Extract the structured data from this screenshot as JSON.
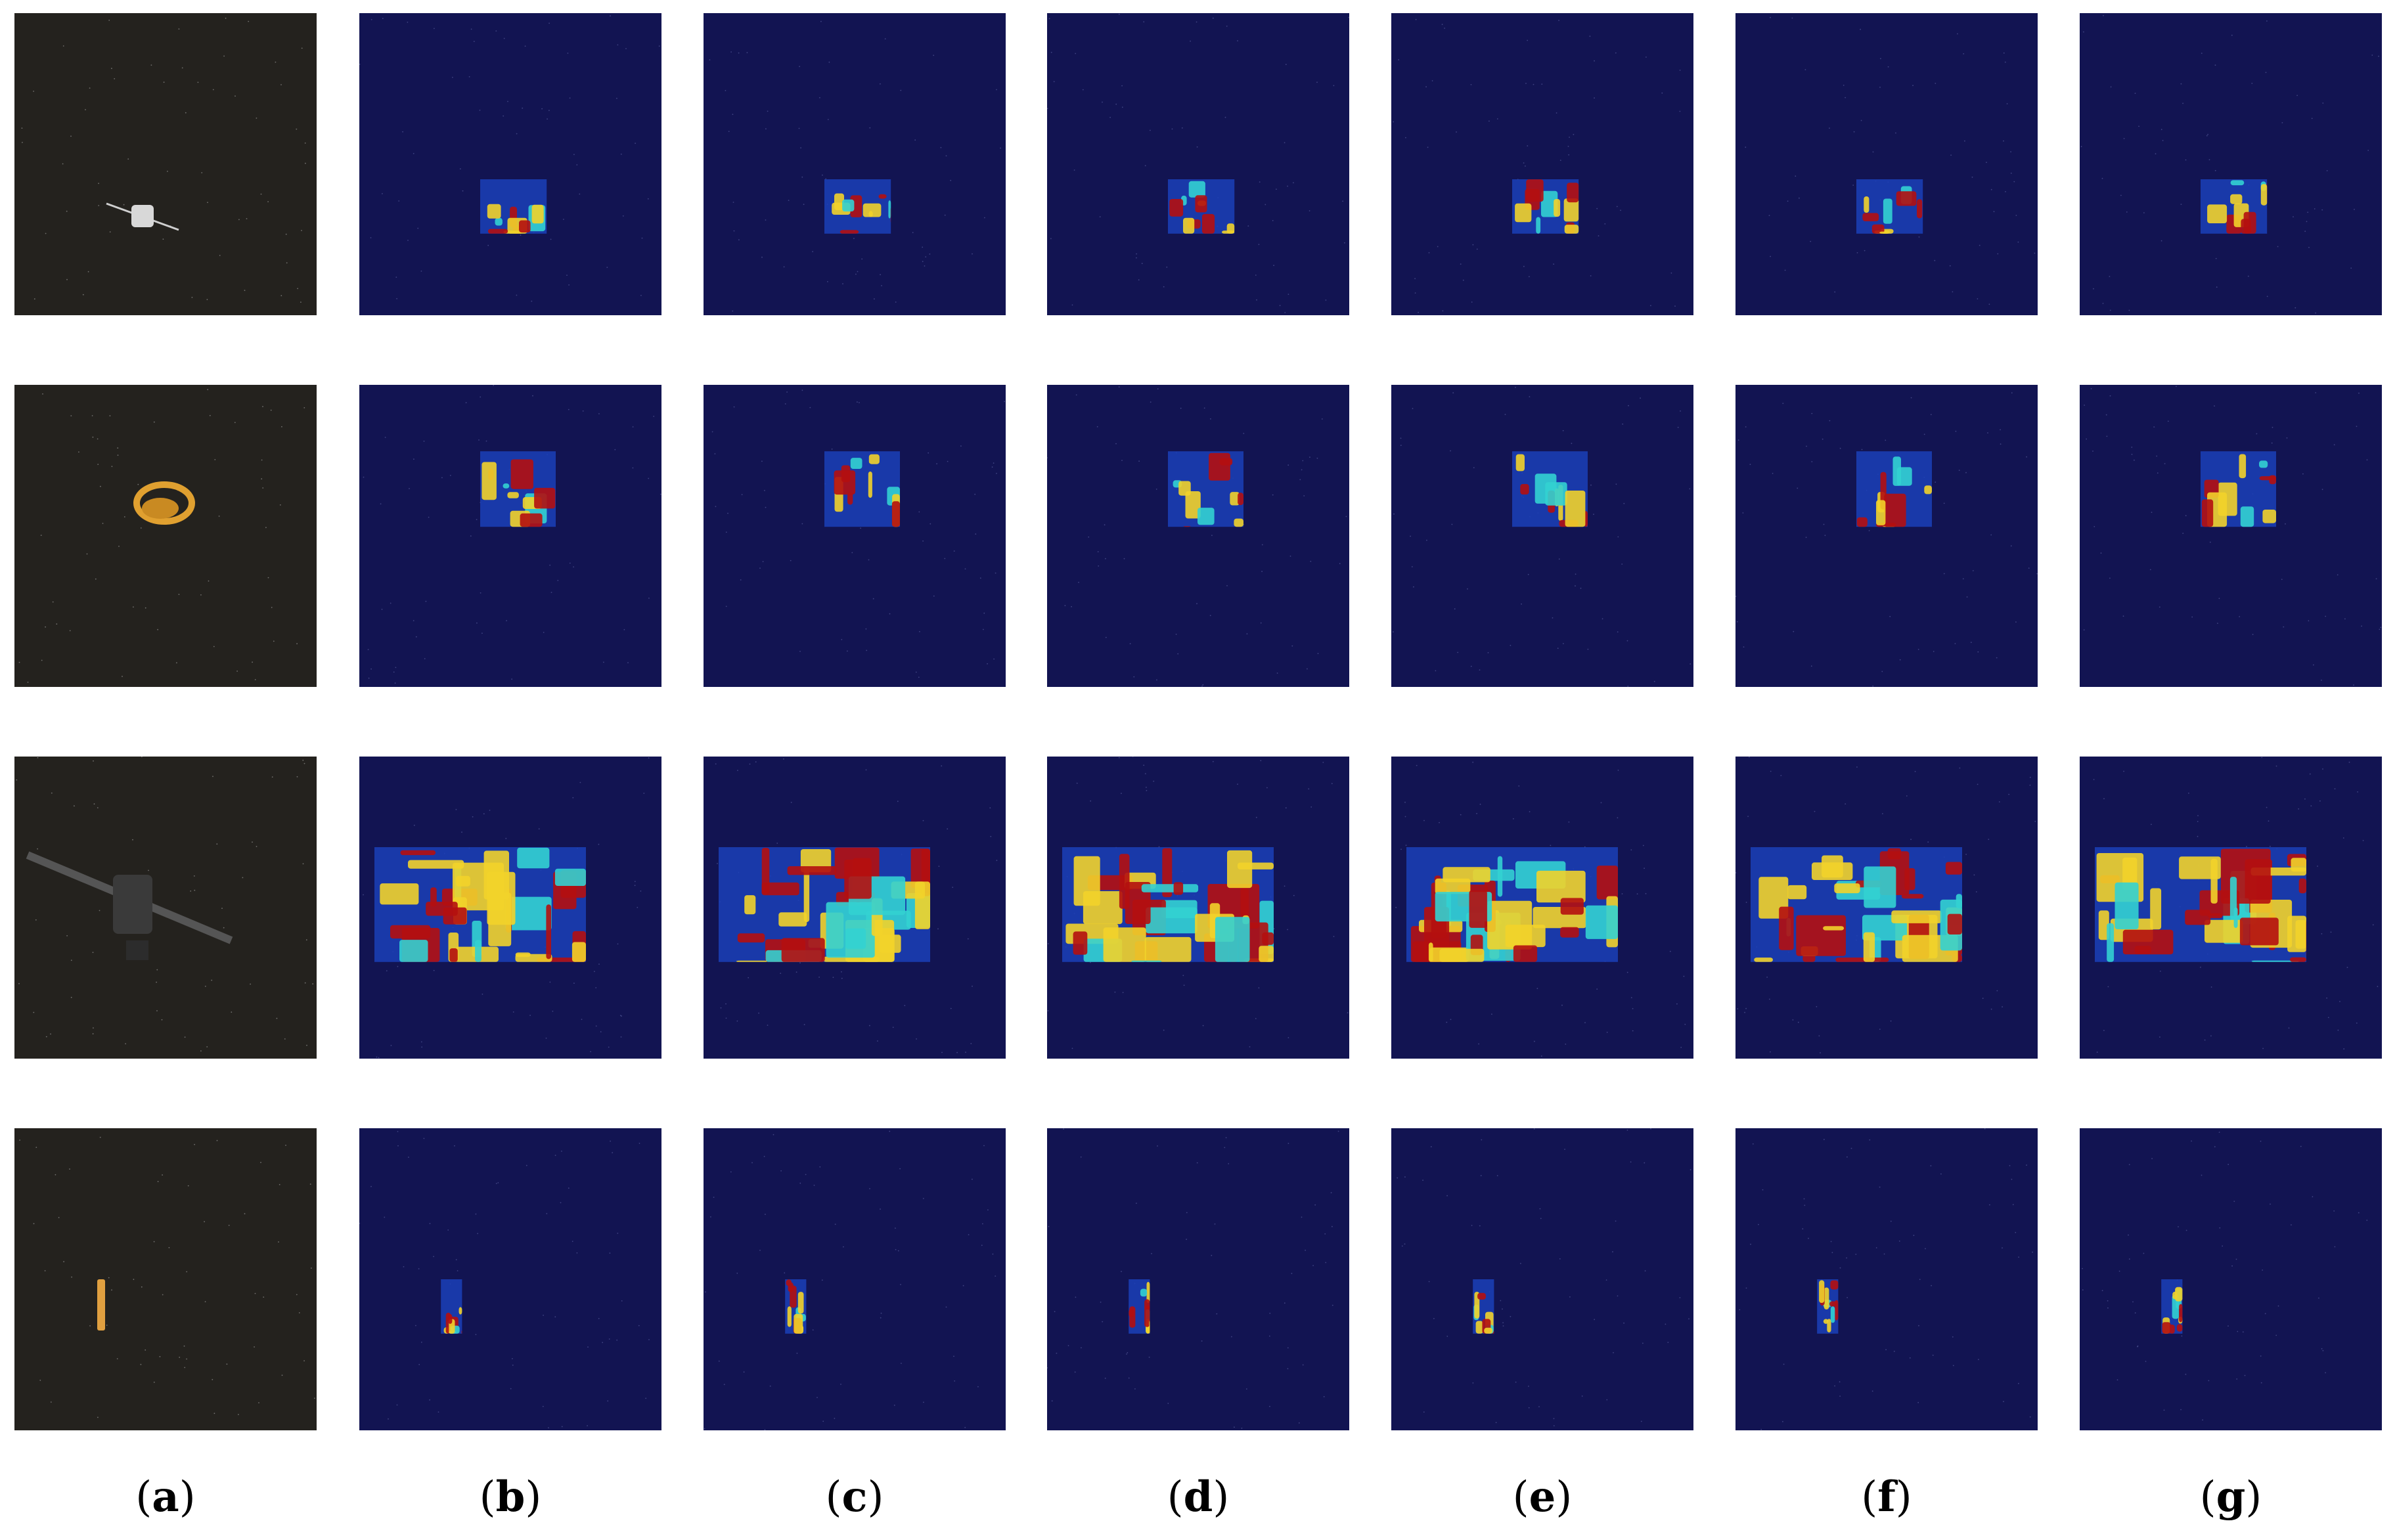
{
  "columns": [
    {
      "letter": "a"
    },
    {
      "letter": "b"
    },
    {
      "letter": "c"
    },
    {
      "letter": "d"
    },
    {
      "letter": "e"
    },
    {
      "letter": "f"
    },
    {
      "letter": "g"
    }
  ],
  "rows": [
    {
      "subject": "satellite with solar panels (small, centered)"
    },
    {
      "subject": "gold foil spacecraft"
    },
    {
      "subject": "satellite with long solar panels (large)"
    },
    {
      "subject": "small elongated object"
    }
  ],
  "colors": {
    "photo_background": "#24221e",
    "heatmap_background": "#121452",
    "heat_red": "#b41010",
    "heat_yellow": "#f2d32a",
    "heat_cyan": "#33d1d1",
    "heat_blue": "#1b3fb8"
  }
}
